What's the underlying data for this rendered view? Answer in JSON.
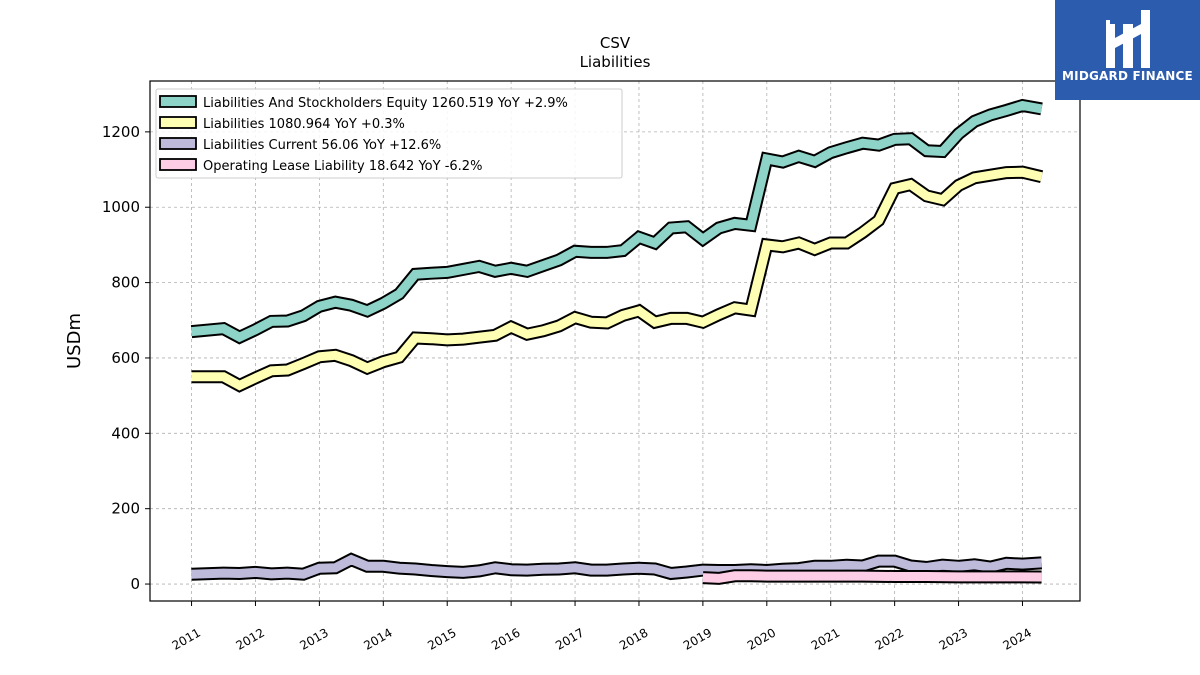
{
  "chart_data": {
    "type": "line",
    "title": "CSV",
    "subtitle": "Liabilities",
    "ylabel": "USDm",
    "xlabel": "",
    "ylim": [
      -45,
      1335
    ],
    "xlim": [
      2010.35,
      2024.9
    ],
    "yticks": [
      0,
      200,
      400,
      600,
      800,
      1000,
      1200
    ],
    "xticks": [
      2011,
      2012,
      2013,
      2014,
      2015,
      2016,
      2017,
      2018,
      2019,
      2020,
      2021,
      2022,
      2023,
      2024
    ],
    "grid": true,
    "legend_position": "top-left",
    "series": [
      {
        "name": "Liabilities And Stockholders Equity",
        "legend": "Liabilities And Stockholders Equity  1260.519 YoY +2.9%",
        "color": "#8dd3c7",
        "x": [
          2011.0,
          2011.5,
          2011.75,
          2012.0,
          2012.25,
          2012.5,
          2012.75,
          2013.0,
          2013.25,
          2013.5,
          2013.75,
          2014.0,
          2014.25,
          2014.5,
          2014.75,
          2015.0,
          2015.25,
          2015.5,
          2015.75,
          2016.0,
          2016.25,
          2016.5,
          2016.75,
          2017.0,
          2017.25,
          2017.5,
          2017.75,
          2018.0,
          2018.25,
          2018.5,
          2018.75,
          2019.0,
          2019.25,
          2019.5,
          2019.75,
          2020.0,
          2020.25,
          2020.5,
          2020.75,
          2021.0,
          2021.25,
          2021.5,
          2021.75,
          2022.0,
          2022.25,
          2022.5,
          2022.75,
          2023.0,
          2023.25,
          2023.5,
          2023.75,
          2024.0,
          2024.3
        ],
        "values": [
          670,
          678,
          655,
          675,
          697,
          698,
          712,
          737,
          748,
          740,
          725,
          745,
          770,
          822,
          825,
          827,
          835,
          843,
          830,
          838,
          830,
          845,
          860,
          883,
          880,
          880,
          885,
          920,
          905,
          945,
          948,
          915,
          945,
          957,
          952,
          1128,
          1120,
          1135,
          1122,
          1145,
          1158,
          1170,
          1165,
          1180,
          1182,
          1150,
          1148,
          1195,
          1228,
          1245,
          1257,
          1270,
          1261
        ]
      },
      {
        "name": "Liabilities",
        "legend": "Liabilities  1080.964 YoY +0.3%",
        "color": "#ffffb3",
        "x": [
          2011.0,
          2011.5,
          2011.75,
          2012.0,
          2012.25,
          2012.5,
          2012.75,
          2013.0,
          2013.25,
          2013.5,
          2013.75,
          2014.0,
          2014.25,
          2014.5,
          2014.75,
          2015.0,
          2015.25,
          2015.5,
          2015.75,
          2016.0,
          2016.25,
          2016.5,
          2016.75,
          2017.0,
          2017.25,
          2017.5,
          2017.75,
          2018.0,
          2018.25,
          2018.5,
          2018.75,
          2019.0,
          2019.25,
          2019.5,
          2019.75,
          2020.0,
          2020.25,
          2020.5,
          2020.75,
          2021.0,
          2021.25,
          2021.5,
          2021.75,
          2022.0,
          2022.25,
          2022.5,
          2022.75,
          2023.0,
          2023.25,
          2023.5,
          2023.75,
          2024.0,
          2024.3
        ],
        "values": [
          550,
          550,
          527,
          547,
          566,
          568,
          585,
          603,
          607,
          593,
          573,
          590,
          602,
          653,
          651,
          648,
          650,
          655,
          660,
          682,
          663,
          672,
          685,
          707,
          695,
          693,
          713,
          725,
          695,
          705,
          705,
          695,
          715,
          733,
          727,
          900,
          895,
          905,
          888,
          905,
          905,
          933,
          965,
          1050,
          1060,
          1030,
          1020,
          1058,
          1078,
          1085,
          1092,
          1093,
          1081
        ]
      },
      {
        "name": "Liabilities Current",
        "legend": "Liabilities Current  56.06 YoY +12.6%",
        "color": "#bebada",
        "x": [
          2011.0,
          2011.5,
          2011.75,
          2012.0,
          2012.25,
          2012.5,
          2012.75,
          2013.0,
          2013.25,
          2013.5,
          2013.75,
          2014.0,
          2014.25,
          2014.5,
          2014.75,
          2015.0,
          2015.25,
          2015.5,
          2015.75,
          2016.0,
          2016.25,
          2016.5,
          2016.75,
          2017.0,
          2017.25,
          2017.5,
          2017.75,
          2018.0,
          2018.25,
          2018.5,
          2018.75,
          2019.0,
          2019.25,
          2019.5,
          2019.75,
          2020.0,
          2020.25,
          2020.5,
          2020.75,
          2021.0,
          2021.25,
          2021.5,
          2021.75,
          2022.0,
          2022.25,
          2022.5,
          2022.75,
          2023.0,
          2023.25,
          2023.5,
          2023.75,
          2024.0,
          2024.3
        ],
        "values": [
          26,
          29,
          28,
          31,
          27,
          29,
          26,
          42,
          43,
          65,
          47,
          47,
          42,
          40,
          36,
          33,
          31,
          35,
          43,
          38,
          37,
          39,
          40,
          43,
          37,
          37,
          40,
          42,
          40,
          28,
          32,
          37,
          36,
          36,
          38,
          36,
          39,
          41,
          47,
          47,
          50,
          48,
          61,
          61,
          48,
          44,
          50,
          47,
          51,
          45,
          55,
          53,
          56
        ]
      },
      {
        "name": "Operating Lease Liability",
        "legend": "Operating Lease Liability  18.642 YoY -6.2%",
        "color": "#fccde5",
        "x": [
          2019.0,
          2019.25,
          2019.5,
          2019.75,
          2020.0,
          2020.5,
          2021.0,
          2021.5,
          2022.0,
          2022.5,
          2023.0,
          2023.5,
          2024.0,
          2024.3
        ],
        "values": [
          17,
          15,
          22,
          22,
          21,
          21,
          21,
          21,
          20,
          20,
          19,
          19,
          19,
          18.6
        ]
      }
    ]
  },
  "logo": {
    "text": "MIDGARD FINANCE",
    "background": "#2b5cad"
  }
}
